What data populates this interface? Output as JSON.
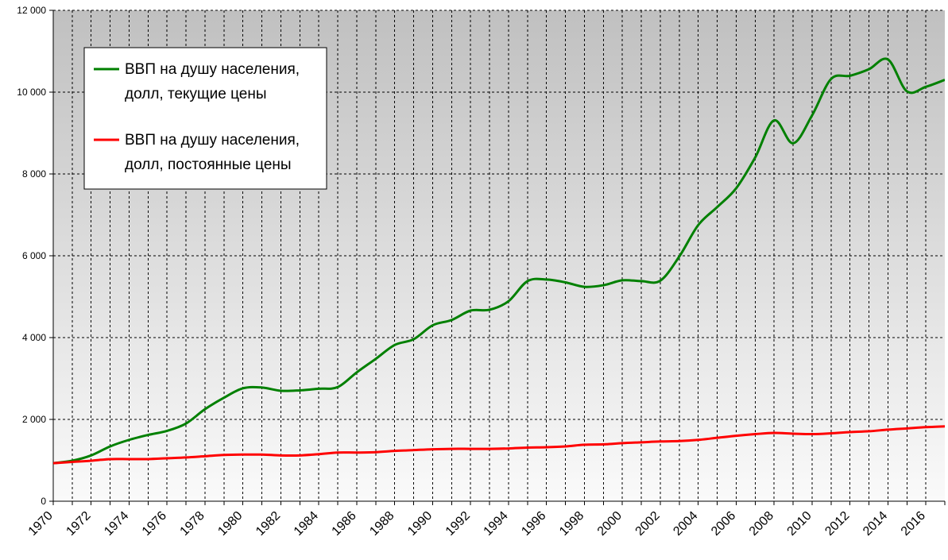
{
  "chart_data": {
    "type": "line",
    "title": "",
    "xlabel": "",
    "ylabel": "",
    "xlim": [
      1970,
      2017
    ],
    "ylim": [
      0,
      12000
    ],
    "y_ticks": [
      {
        "value": 0,
        "label": "0"
      },
      {
        "value": 2000,
        "label": "2 000"
      },
      {
        "value": 4000,
        "label": "4 000"
      },
      {
        "value": 6000,
        "label": "6 000"
      },
      {
        "value": 8000,
        "label": "8 000"
      },
      {
        "value": 10000,
        "label": "10 000"
      },
      {
        "value": 12000,
        "label": "12 000"
      }
    ],
    "x_ticks": [
      {
        "value": 1970,
        "label": "1970"
      },
      {
        "value": 1972,
        "label": "1972"
      },
      {
        "value": 1974,
        "label": "1974"
      },
      {
        "value": 1976,
        "label": "1976"
      },
      {
        "value": 1978,
        "label": "1978"
      },
      {
        "value": 1980,
        "label": "1980"
      },
      {
        "value": 1982,
        "label": "1982"
      },
      {
        "value": 1984,
        "label": "1984"
      },
      {
        "value": 1986,
        "label": "1986"
      },
      {
        "value": 1988,
        "label": "1988"
      },
      {
        "value": 1990,
        "label": "1990"
      },
      {
        "value": 1992,
        "label": "1992"
      },
      {
        "value": 1994,
        "label": "1994"
      },
      {
        "value": 1996,
        "label": "1996"
      },
      {
        "value": 1998,
        "label": "1998"
      },
      {
        "value": 2000,
        "label": "2000"
      },
      {
        "value": 2002,
        "label": "2002"
      },
      {
        "value": 2004,
        "label": "2004"
      },
      {
        "value": 2006,
        "label": "2006"
      },
      {
        "value": 2008,
        "label": "2008"
      },
      {
        "value": 2010,
        "label": "2010"
      },
      {
        "value": 2012,
        "label": "2012"
      },
      {
        "value": 2014,
        "label": "2014"
      },
      {
        "value": 2016,
        "label": "2016"
      }
    ],
    "grid": true,
    "legend_position": "top-left",
    "series": [
      {
        "name": "ВВП на душу населения, долл, текущие цены",
        "name_lines": [
          "ВВП на душу населения,",
          "долл, текущие цены"
        ],
        "color": "#008000",
        "x": [
          1970,
          1971,
          1972,
          1973,
          1974,
          1975,
          1976,
          1977,
          1978,
          1979,
          1980,
          1981,
          1982,
          1983,
          1984,
          1985,
          1986,
          1987,
          1988,
          1989,
          1990,
          1991,
          1992,
          1993,
          1994,
          1995,
          1996,
          1997,
          1998,
          1999,
          2000,
          2001,
          2002,
          2003,
          2004,
          2005,
          2006,
          2007,
          2008,
          2009,
          2010,
          2011,
          2012,
          2013,
          2014,
          2015,
          2016,
          2017
        ],
        "y": [
          930,
          990,
          1120,
          1340,
          1500,
          1620,
          1720,
          1900,
          2250,
          2530,
          2760,
          2780,
          2700,
          2710,
          2750,
          2790,
          3150,
          3480,
          3820,
          3960,
          4300,
          4430,
          4660,
          4680,
          4890,
          5380,
          5420,
          5350,
          5240,
          5280,
          5400,
          5380,
          5390,
          5980,
          6750,
          7190,
          7650,
          8400,
          9310,
          8750,
          9430,
          10320,
          10400,
          10560,
          10800,
          10020,
          10130,
          10300
        ]
      },
      {
        "name": "ВВП на душу населения, долл, постоянные цены",
        "name_lines": [
          "ВВП на душу населения,",
          "долл, постоянные цены"
        ],
        "color": "#ff0000",
        "x": [
          1970,
          1971,
          1972,
          1973,
          1974,
          1975,
          1976,
          1977,
          1978,
          1979,
          1980,
          1981,
          1982,
          1983,
          1984,
          1985,
          1986,
          1987,
          1988,
          1989,
          1990,
          1991,
          1992,
          1993,
          1994,
          1995,
          1996,
          1997,
          1998,
          1999,
          2000,
          2001,
          2002,
          2003,
          2004,
          2005,
          2006,
          2007,
          2008,
          2009,
          2010,
          2011,
          2012,
          2013,
          2014,
          2015,
          2016,
          2017
        ],
        "y": [
          930,
          960,
          990,
          1030,
          1030,
          1030,
          1050,
          1070,
          1100,
          1130,
          1140,
          1140,
          1120,
          1120,
          1150,
          1190,
          1190,
          1200,
          1230,
          1250,
          1270,
          1280,
          1280,
          1280,
          1290,
          1310,
          1320,
          1340,
          1380,
          1390,
          1420,
          1440,
          1460,
          1470,
          1500,
          1550,
          1600,
          1640,
          1670,
          1650,
          1640,
          1660,
          1690,
          1710,
          1750,
          1780,
          1810,
          1830
        ]
      }
    ]
  }
}
